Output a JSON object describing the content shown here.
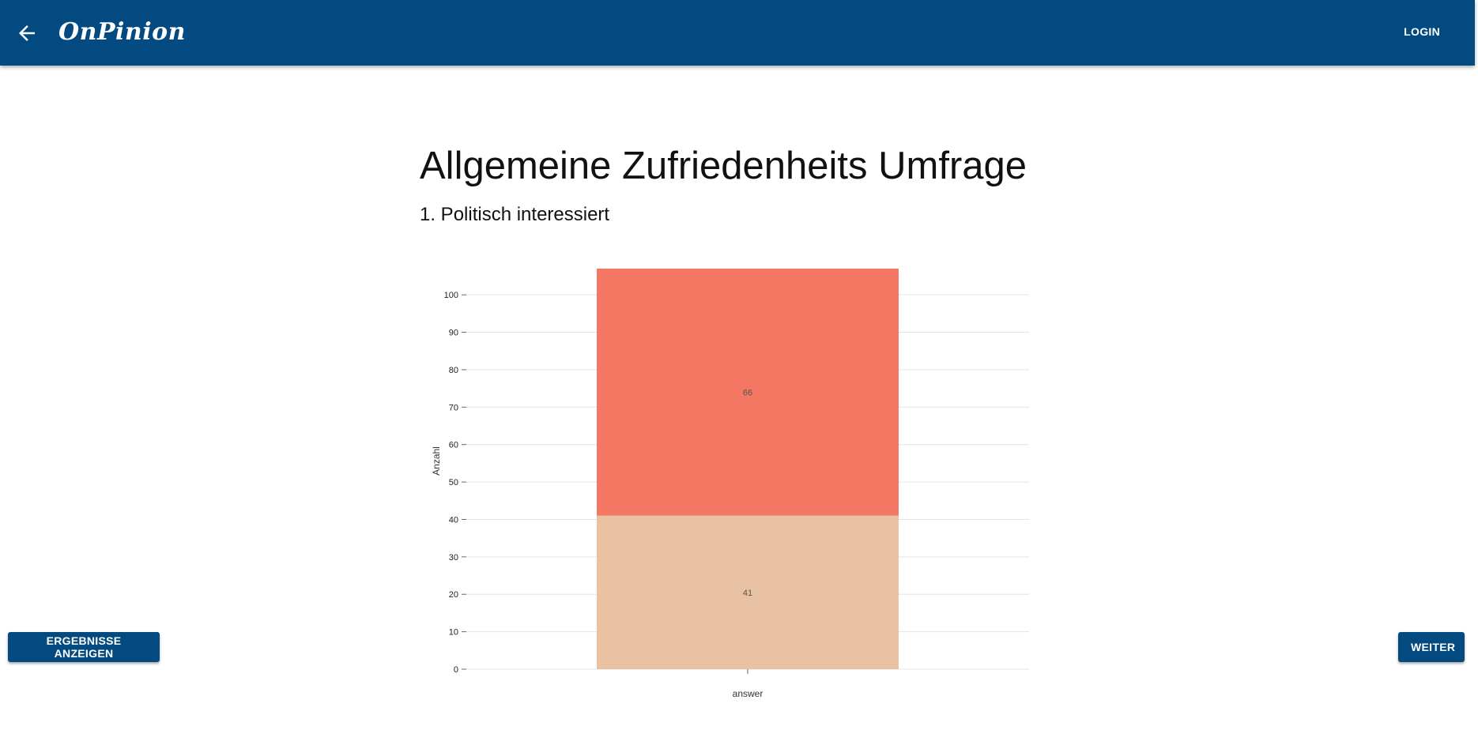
{
  "header": {
    "back_icon": "arrow-left-icon",
    "brand": "OnPinion",
    "login_label": "LOGIN",
    "bar_color": "#034a80"
  },
  "survey": {
    "title": "Allgemeine Zufriedenheits Umfrage",
    "question": "1. Politisch interessiert"
  },
  "chart_data": {
    "type": "bar",
    "stacked": true,
    "categories": [
      "answer"
    ],
    "series": [
      {
        "values": [
          41
        ],
        "color": "#e8c2a2"
      },
      {
        "values": [
          66
        ],
        "color": "#f37762"
      }
    ],
    "xlabel": "answer",
    "ylabel": "Anzahl",
    "ylim": [
      0,
      107
    ],
    "yticks": [
      0,
      10,
      20,
      30,
      40,
      50,
      60,
      70,
      80,
      90,
      100
    ],
    "grid": true
  },
  "actions": {
    "results_label": "ERGEBNISSE ANZEIGEN",
    "next_label": "WEITER"
  }
}
